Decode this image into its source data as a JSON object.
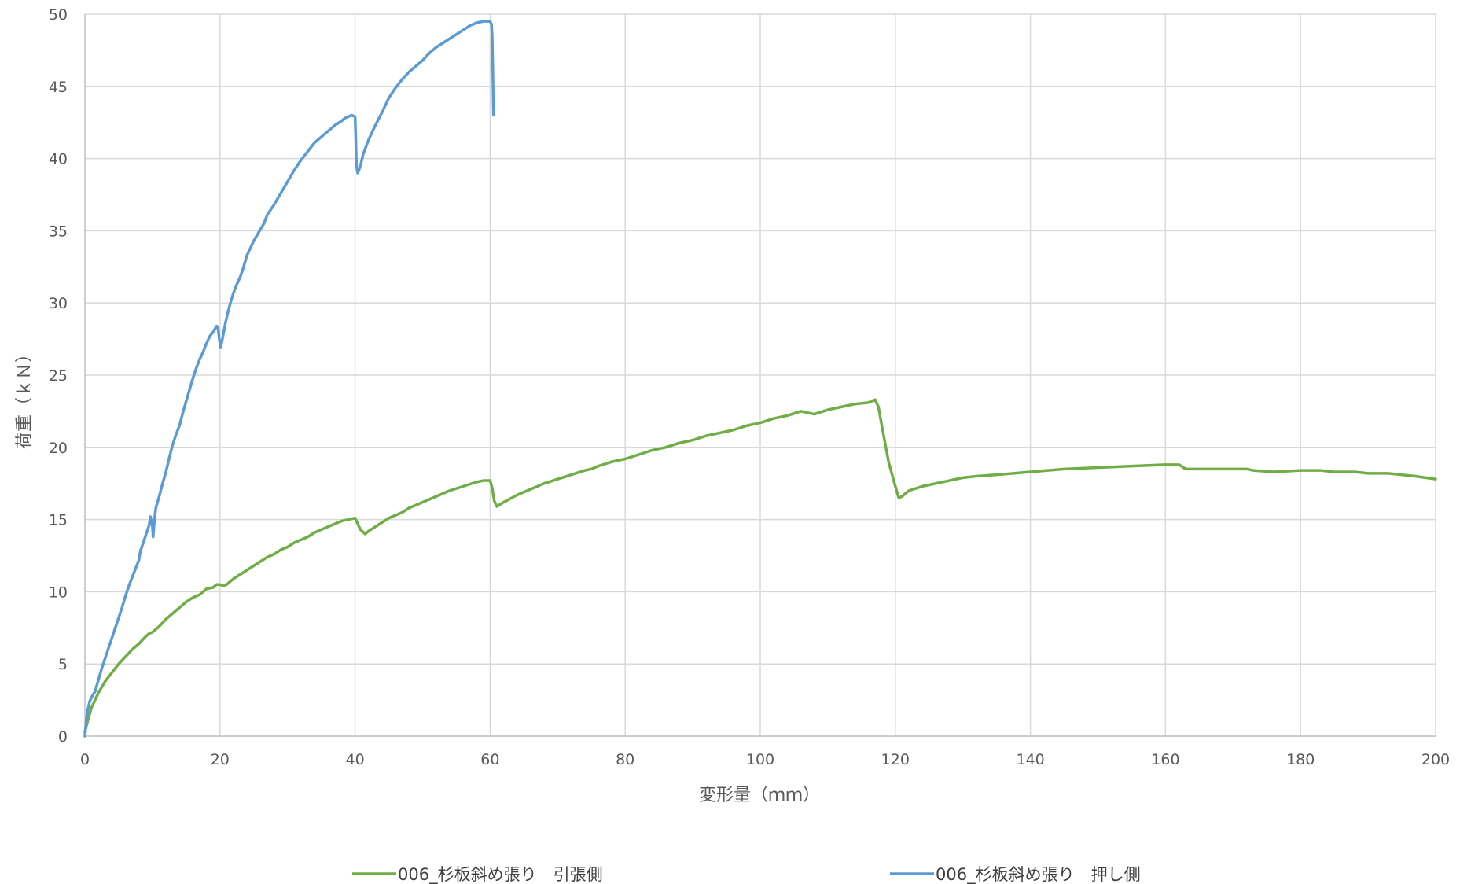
{
  "chart_data": {
    "type": "line",
    "xlabel": "変形量（ｍｍ）",
    "ylabel": "荷重（ｋＮ）",
    "xlim": [
      0,
      200
    ],
    "ylim": [
      0,
      50
    ],
    "xticks": [
      0,
      20,
      40,
      60,
      80,
      100,
      120,
      140,
      160,
      180,
      200
    ],
    "yticks": [
      0,
      5,
      10,
      15,
      20,
      25,
      30,
      35,
      40,
      45,
      50
    ],
    "grid": true,
    "legend": "bottom",
    "series": [
      {
        "name": "006_杉板斜め張り　引張側",
        "color": "#70ad47",
        "points": [
          [
            0,
            0.3
          ],
          [
            0.5,
            1.2
          ],
          [
            1,
            2.0
          ],
          [
            2,
            3.0
          ],
          [
            3,
            3.8
          ],
          [
            4,
            4.4
          ],
          [
            5,
            5.0
          ],
          [
            6,
            5.5
          ],
          [
            7,
            6.0
          ],
          [
            8,
            6.4
          ],
          [
            9,
            6.9
          ],
          [
            9.5,
            7.1
          ],
          [
            10,
            7.2
          ],
          [
            11,
            7.6
          ],
          [
            12,
            8.1
          ],
          [
            13,
            8.5
          ],
          [
            14,
            8.9
          ],
          [
            15,
            9.3
          ],
          [
            16,
            9.6
          ],
          [
            17,
            9.8
          ],
          [
            17.5,
            10.0
          ],
          [
            18,
            10.2
          ],
          [
            19,
            10.3
          ],
          [
            19.5,
            10.5
          ],
          [
            20,
            10.5
          ],
          [
            20.5,
            10.4
          ],
          [
            21,
            10.5
          ],
          [
            22,
            10.9
          ],
          [
            23,
            11.2
          ],
          [
            24,
            11.5
          ],
          [
            25,
            11.8
          ],
          [
            26,
            12.1
          ],
          [
            27,
            12.4
          ],
          [
            28,
            12.6
          ],
          [
            29,
            12.9
          ],
          [
            30,
            13.1
          ],
          [
            31,
            13.4
          ],
          [
            32,
            13.6
          ],
          [
            33,
            13.8
          ],
          [
            34,
            14.1
          ],
          [
            35,
            14.3
          ],
          [
            36,
            14.5
          ],
          [
            37,
            14.7
          ],
          [
            38,
            14.9
          ],
          [
            39,
            15.0
          ],
          [
            40,
            15.1
          ],
          [
            40.3,
            14.8
          ],
          [
            40.8,
            14.3
          ],
          [
            41.5,
            14.0
          ],
          [
            42,
            14.2
          ],
          [
            43,
            14.5
          ],
          [
            44,
            14.8
          ],
          [
            45,
            15.1
          ],
          [
            46,
            15.3
          ],
          [
            47,
            15.5
          ],
          [
            48,
            15.8
          ],
          [
            49,
            16.0
          ],
          [
            50,
            16.2
          ],
          [
            52,
            16.6
          ],
          [
            54,
            17.0
          ],
          [
            56,
            17.3
          ],
          [
            58,
            17.6
          ],
          [
            59,
            17.7
          ],
          [
            60,
            17.7
          ],
          [
            60.3,
            17.2
          ],
          [
            60.6,
            16.3
          ],
          [
            61,
            15.9
          ],
          [
            62,
            16.2
          ],
          [
            64,
            16.7
          ],
          [
            66,
            17.1
          ],
          [
            68,
            17.5
          ],
          [
            70,
            17.8
          ],
          [
            72,
            18.1
          ],
          [
            74,
            18.4
          ],
          [
            75,
            18.5
          ],
          [
            76,
            18.7
          ],
          [
            78,
            19.0
          ],
          [
            80,
            19.2
          ],
          [
            82,
            19.5
          ],
          [
            84,
            19.8
          ],
          [
            86,
            20.0
          ],
          [
            88,
            20.3
          ],
          [
            90,
            20.5
          ],
          [
            92,
            20.8
          ],
          [
            94,
            21.0
          ],
          [
            96,
            21.2
          ],
          [
            98,
            21.5
          ],
          [
            100,
            21.7
          ],
          [
            102,
            22.0
          ],
          [
            104,
            22.2
          ],
          [
            106,
            22.5
          ],
          [
            108,
            22.3
          ],
          [
            110,
            22.6
          ],
          [
            112,
            22.8
          ],
          [
            114,
            23.0
          ],
          [
            116,
            23.1
          ],
          [
            117,
            23.3
          ],
          [
            117.5,
            22.8
          ],
          [
            118,
            21.5
          ],
          [
            119,
            19.0
          ],
          [
            120,
            17.3
          ],
          [
            120.5,
            16.5
          ],
          [
            121,
            16.6
          ],
          [
            122,
            17.0
          ],
          [
            124,
            17.3
          ],
          [
            126,
            17.5
          ],
          [
            128,
            17.7
          ],
          [
            130,
            17.9
          ],
          [
            132,
            18.0
          ],
          [
            135,
            18.1
          ],
          [
            140,
            18.3
          ],
          [
            145,
            18.5
          ],
          [
            150,
            18.6
          ],
          [
            155,
            18.7
          ],
          [
            160,
            18.8
          ],
          [
            162,
            18.8
          ],
          [
            163,
            18.5
          ],
          [
            166,
            18.5
          ],
          [
            170,
            18.5
          ],
          [
            172,
            18.5
          ],
          [
            173,
            18.4
          ],
          [
            176,
            18.3
          ],
          [
            180,
            18.4
          ],
          [
            183,
            18.4
          ],
          [
            185,
            18.3
          ],
          [
            188,
            18.3
          ],
          [
            190,
            18.2
          ],
          [
            193,
            18.2
          ],
          [
            195,
            18.1
          ],
          [
            197,
            18.0
          ],
          [
            200,
            17.8
          ]
        ]
      },
      {
        "name": "006_杉板斜め張り　押し側",
        "color": "#5b9bd5",
        "points": [
          [
            0,
            0
          ],
          [
            0.3,
            1.5
          ],
          [
            0.7,
            2.4
          ],
          [
            1,
            2.7
          ],
          [
            1.5,
            3.1
          ],
          [
            2,
            3.9
          ],
          [
            2.5,
            4.7
          ],
          [
            3,
            5.4
          ],
          [
            3.5,
            6.1
          ],
          [
            4,
            6.8
          ],
          [
            4.5,
            7.5
          ],
          [
            5,
            8.2
          ],
          [
            5.5,
            8.9
          ],
          [
            6,
            9.7
          ],
          [
            6.5,
            10.4
          ],
          [
            7,
            11.0
          ],
          [
            7.5,
            11.6
          ],
          [
            8,
            12.2
          ],
          [
            8.2,
            12.8
          ],
          [
            8.5,
            13.2
          ],
          [
            9,
            13.9
          ],
          [
            9.5,
            14.6
          ],
          [
            9.7,
            15.2
          ],
          [
            10,
            14.5
          ],
          [
            10.1,
            13.8
          ],
          [
            10.3,
            15.0
          ],
          [
            10.5,
            15.8
          ],
          [
            11,
            16.6
          ],
          [
            11.5,
            17.5
          ],
          [
            12,
            18.3
          ],
          [
            12.5,
            19.3
          ],
          [
            13,
            20.2
          ],
          [
            13.5,
            20.9
          ],
          [
            14,
            21.5
          ],
          [
            14.5,
            22.4
          ],
          [
            15,
            23.2
          ],
          [
            15.5,
            24.0
          ],
          [
            16,
            24.8
          ],
          [
            16.5,
            25.5
          ],
          [
            17,
            26.1
          ],
          [
            17.5,
            26.6
          ],
          [
            18,
            27.2
          ],
          [
            18.5,
            27.7
          ],
          [
            19,
            28.0
          ],
          [
            19.5,
            28.4
          ],
          [
            19.7,
            28.3
          ],
          [
            19.9,
            27.5
          ],
          [
            20.1,
            26.9
          ],
          [
            20.4,
            27.6
          ],
          [
            20.8,
            28.6
          ],
          [
            21.2,
            29.4
          ],
          [
            21.6,
            30.1
          ],
          [
            22,
            30.7
          ],
          [
            22.5,
            31.3
          ],
          [
            23,
            31.8
          ],
          [
            23.5,
            32.5
          ],
          [
            24,
            33.3
          ],
          [
            24.5,
            33.8
          ],
          [
            25,
            34.3
          ],
          [
            25.5,
            34.7
          ],
          [
            26,
            35.1
          ],
          [
            26.5,
            35.5
          ],
          [
            27,
            36.1
          ],
          [
            28,
            36.8
          ],
          [
            29,
            37.6
          ],
          [
            30,
            38.4
          ],
          [
            31,
            39.2
          ],
          [
            32,
            39.9
          ],
          [
            33,
            40.5
          ],
          [
            34,
            41.1
          ],
          [
            35,
            41.5
          ],
          [
            36,
            41.9
          ],
          [
            37,
            42.3
          ],
          [
            38,
            42.6
          ],
          [
            38.5,
            42.8
          ],
          [
            39,
            42.9
          ],
          [
            39.5,
            43.0
          ],
          [
            40,
            42.9
          ],
          [
            40.1,
            41.5
          ],
          [
            40.2,
            39.5
          ],
          [
            40.4,
            39.0
          ],
          [
            40.8,
            39.5
          ],
          [
            41.2,
            40.3
          ],
          [
            42,
            41.3
          ],
          [
            43,
            42.3
          ],
          [
            44,
            43.2
          ],
          [
            45,
            44.2
          ],
          [
            46,
            44.9
          ],
          [
            47,
            45.5
          ],
          [
            48,
            46.0
          ],
          [
            49,
            46.4
          ],
          [
            50,
            46.8
          ],
          [
            51,
            47.3
          ],
          [
            52,
            47.7
          ],
          [
            53,
            48.0
          ],
          [
            54,
            48.3
          ],
          [
            55,
            48.6
          ],
          [
            56,
            48.9
          ],
          [
            57,
            49.2
          ],
          [
            58,
            49.4
          ],
          [
            59,
            49.5
          ],
          [
            60,
            49.5
          ],
          [
            60.2,
            49.3
          ],
          [
            60.3,
            48.5
          ],
          [
            60.4,
            46.0
          ],
          [
            60.5,
            43.0
          ]
        ]
      }
    ]
  }
}
